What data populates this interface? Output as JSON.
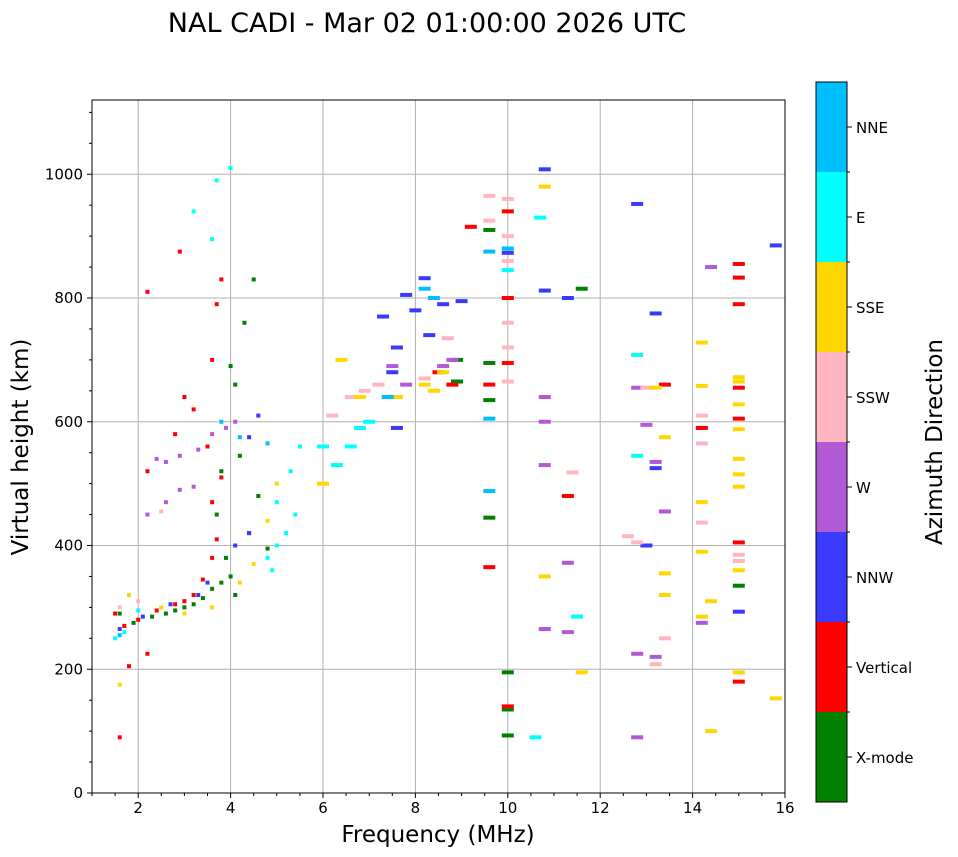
{
  "chart_data": {
    "type": "scatter",
    "title": "NAL CADI - Mar 02 01:00:00 2026 UTC",
    "xlabel": "Frequency (MHz)",
    "ylabel": "Virtual height (km)",
    "xlim": [
      1,
      16
    ],
    "ylim": [
      0,
      1120
    ],
    "xticks": [
      "2",
      "4",
      "6",
      "8",
      "10",
      "12",
      "14",
      "16"
    ],
    "xtick_values": [
      2,
      4,
      6,
      8,
      10,
      12,
      14,
      16
    ],
    "yticks": [
      "0",
      "200",
      "400",
      "600",
      "800",
      "1000"
    ],
    "ytick_values": [
      0,
      200,
      400,
      600,
      800,
      1000
    ],
    "grid": true,
    "colorbar": {
      "label": "Azimuth Direction",
      "categories": [
        "X-mode",
        "Vertical",
        "NNW",
        "W",
        "SSW",
        "SSE",
        "E",
        "NNE"
      ],
      "colors": [
        "#008000",
        "#ff0000",
        "#3a3aff",
        "#b25ad6",
        "#ffb6c1",
        "#ffd700",
        "#00ffff",
        "#00bfff"
      ]
    },
    "series": [
      {
        "name": "X-mode",
        "points": [
          [
            1.6,
            290
          ],
          [
            1.9,
            275
          ],
          [
            2.3,
            285
          ],
          [
            2.6,
            290
          ],
          [
            2.8,
            295
          ],
          [
            3.0,
            300
          ],
          [
            3.2,
            305
          ],
          [
            3.4,
            315
          ],
          [
            3.6,
            330
          ],
          [
            3.8,
            340
          ],
          [
            4.0,
            350
          ],
          [
            4.1,
            320
          ],
          [
            3.9,
            380
          ],
          [
            4.0,
            690
          ],
          [
            4.1,
            660
          ],
          [
            4.3,
            760
          ],
          [
            4.5,
            830
          ],
          [
            3.7,
            450
          ],
          [
            4.4,
            420
          ],
          [
            4.6,
            480
          ],
          [
            4.2,
            545
          ],
          [
            3.8,
            520
          ],
          [
            9.6,
            445
          ],
          [
            9.6,
            695
          ],
          [
            9.6,
            635
          ],
          [
            9.6,
            910
          ],
          [
            10.0,
            195
          ],
          [
            10.0,
            135
          ],
          [
            10.0,
            93
          ],
          [
            11.6,
            815
          ],
          [
            15.0,
            335
          ],
          [
            8.9,
            665
          ],
          [
            8.9,
            700
          ],
          [
            4.8,
            395
          ]
        ]
      },
      {
        "name": "Vertical",
        "points": [
          [
            1.5,
            290
          ],
          [
            1.7,
            270
          ],
          [
            2.0,
            280
          ],
          [
            2.4,
            295
          ],
          [
            2.8,
            305
          ],
          [
            3.0,
            310
          ],
          [
            3.2,
            320
          ],
          [
            3.4,
            345
          ],
          [
            3.6,
            380
          ],
          [
            3.7,
            410
          ],
          [
            3.6,
            470
          ],
          [
            3.8,
            510
          ],
          [
            3.5,
            560
          ],
          [
            3.2,
            620
          ],
          [
            3.0,
            640
          ],
          [
            2.8,
            580
          ],
          [
            2.2,
            520
          ],
          [
            3.6,
            700
          ],
          [
            3.7,
            790
          ],
          [
            3.8,
            830
          ],
          [
            2.9,
            875
          ],
          [
            2.2,
            810
          ],
          [
            1.6,
            90
          ],
          [
            1.8,
            205
          ],
          [
            2.2,
            225
          ],
          [
            9.2,
            915
          ],
          [
            9.6,
            365
          ],
          [
            9.6,
            660
          ],
          [
            10.0,
            940
          ],
          [
            10.0,
            800
          ],
          [
            10.0,
            695
          ],
          [
            10.0,
            140
          ],
          [
            11.3,
            480
          ],
          [
            14.2,
            590
          ],
          [
            15.0,
            855
          ],
          [
            15.0,
            833
          ],
          [
            15.0,
            790
          ],
          [
            15.0,
            655
          ],
          [
            15.0,
            605
          ],
          [
            15.0,
            405
          ],
          [
            15.0,
            180
          ],
          [
            8.5,
            680
          ],
          [
            8.8,
            660
          ],
          [
            13.4,
            660
          ]
        ]
      },
      {
        "name": "NNW",
        "points": [
          [
            1.6,
            265
          ],
          [
            2.1,
            285
          ],
          [
            2.7,
            305
          ],
          [
            3.3,
            320
          ],
          [
            3.5,
            340
          ],
          [
            4.1,
            400
          ],
          [
            4.4,
            420
          ],
          [
            4.4,
            575
          ],
          [
            4.6,
            610
          ],
          [
            7.5,
            680
          ],
          [
            7.6,
            720
          ],
          [
            7.8,
            805
          ],
          [
            8.2,
            832
          ],
          [
            8.3,
            740
          ],
          [
            8.6,
            790
          ],
          [
            9.0,
            795
          ],
          [
            7.3,
            770
          ],
          [
            7.6,
            590
          ],
          [
            10.0,
            873
          ],
          [
            10.8,
            1008
          ],
          [
            10.8,
            812
          ],
          [
            12.8,
            952
          ],
          [
            13.2,
            775
          ],
          [
            13.2,
            525
          ],
          [
            13.0,
            400
          ],
          [
            15.0,
            293
          ],
          [
            15.8,
            885
          ],
          [
            11.3,
            800
          ],
          [
            8.0,
            780
          ]
        ]
      },
      {
        "name": "W",
        "points": [
          [
            2.4,
            540
          ],
          [
            2.6,
            535
          ],
          [
            2.9,
            545
          ],
          [
            3.3,
            555
          ],
          [
            3.6,
            580
          ],
          [
            3.9,
            590
          ],
          [
            4.1,
            600
          ],
          [
            2.6,
            470
          ],
          [
            2.9,
            490
          ],
          [
            3.2,
            495
          ],
          [
            2.2,
            450
          ],
          [
            7.5,
            690
          ],
          [
            7.8,
            660
          ],
          [
            8.6,
            690
          ],
          [
            8.8,
            700
          ],
          [
            10.8,
            640
          ],
          [
            10.8,
            600
          ],
          [
            10.8,
            530
          ],
          [
            10.8,
            265
          ],
          [
            11.3,
            260
          ],
          [
            11.3,
            372
          ],
          [
            12.8,
            655
          ],
          [
            12.8,
            225
          ],
          [
            12.8,
            90
          ],
          [
            13.2,
            535
          ],
          [
            13.2,
            220
          ],
          [
            13.4,
            455
          ],
          [
            14.2,
            275
          ],
          [
            14.4,
            850
          ],
          [
            13.0,
            595
          ]
        ]
      },
      {
        "name": "SSW",
        "points": [
          [
            1.6,
            300
          ],
          [
            2.0,
            310
          ],
          [
            2.5,
            455
          ],
          [
            6.2,
            610
          ],
          [
            6.6,
            640
          ],
          [
            6.9,
            650
          ],
          [
            7.2,
            660
          ],
          [
            8.7,
            735
          ],
          [
            9.6,
            965
          ],
          [
            9.6,
            925
          ],
          [
            10.0,
            960
          ],
          [
            10.0,
            900
          ],
          [
            10.0,
            860
          ],
          [
            10.0,
            760
          ],
          [
            10.0,
            720
          ],
          [
            10.0,
            665
          ],
          [
            11.4,
            518
          ],
          [
            12.6,
            415
          ],
          [
            12.8,
            405
          ],
          [
            13.0,
            655
          ],
          [
            13.2,
            208
          ],
          [
            13.4,
            250
          ],
          [
            14.2,
            610
          ],
          [
            14.2,
            565
          ],
          [
            14.2,
            437
          ],
          [
            15.0,
            385
          ],
          [
            15.0,
            375
          ],
          [
            8.2,
            670
          ]
        ]
      },
      {
        "name": "SSE",
        "points": [
          [
            1.6,
            175
          ],
          [
            1.8,
            320
          ],
          [
            2.5,
            300
          ],
          [
            3.0,
            290
          ],
          [
            3.6,
            300
          ],
          [
            4.2,
            340
          ],
          [
            4.5,
            370
          ],
          [
            4.8,
            440
          ],
          [
            5.0,
            500
          ],
          [
            6.0,
            500
          ],
          [
            6.4,
            700
          ],
          [
            6.8,
            640
          ],
          [
            7.6,
            640
          ],
          [
            8.2,
            660
          ],
          [
            8.4,
            650
          ],
          [
            8.6,
            680
          ],
          [
            10.8,
            980
          ],
          [
            10.8,
            350
          ],
          [
            11.6,
            195
          ],
          [
            13.4,
            575
          ],
          [
            13.4,
            355
          ],
          [
            13.4,
            320
          ],
          [
            14.2,
            728
          ],
          [
            14.2,
            658
          ],
          [
            14.2,
            390
          ],
          [
            14.2,
            470
          ],
          [
            14.2,
            285
          ],
          [
            14.4,
            310
          ],
          [
            14.4,
            100
          ],
          [
            15.0,
            672
          ],
          [
            15.0,
            628
          ],
          [
            15.0,
            588
          ],
          [
            15.0,
            540
          ],
          [
            15.0,
            515
          ],
          [
            15.0,
            495
          ],
          [
            15.0,
            360
          ],
          [
            15.0,
            195
          ],
          [
            15.8,
            153
          ],
          [
            13.2,
            655
          ],
          [
            15.0,
            665
          ]
        ]
      },
      {
        "name": "E",
        "points": [
          [
            1.5,
            250
          ],
          [
            1.7,
            260
          ],
          [
            2.0,
            295
          ],
          [
            3.7,
            990
          ],
          [
            3.2,
            940
          ],
          [
            3.6,
            895
          ],
          [
            4.0,
            1010
          ],
          [
            4.8,
            380
          ],
          [
            5.0,
            400
          ],
          [
            5.2,
            420
          ],
          [
            5.4,
            450
          ],
          [
            5.3,
            520
          ],
          [
            5.5,
            560
          ],
          [
            5.0,
            470
          ],
          [
            4.9,
            360
          ],
          [
            6.0,
            560
          ],
          [
            6.3,
            530
          ],
          [
            6.6,
            560
          ],
          [
            6.8,
            590
          ],
          [
            7.0,
            600
          ],
          [
            10.0,
            845
          ],
          [
            10.7,
            930
          ],
          [
            10.6,
            90
          ],
          [
            11.5,
            285
          ],
          [
            12.8,
            708
          ],
          [
            12.8,
            545
          ]
        ]
      },
      {
        "name": "NNE",
        "points": [
          [
            1.6,
            255
          ],
          [
            3.8,
            600
          ],
          [
            4.2,
            575
          ],
          [
            4.8,
            565
          ],
          [
            7.4,
            640
          ],
          [
            8.2,
            815
          ],
          [
            8.4,
            800
          ],
          [
            9.6,
            875
          ],
          [
            9.6,
            605
          ],
          [
            9.6,
            488
          ],
          [
            10.0,
            880
          ]
        ]
      }
    ]
  }
}
